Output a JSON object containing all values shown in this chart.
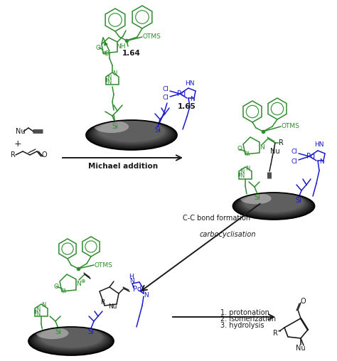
{
  "figure_width": 4.74,
  "figure_height": 5.08,
  "dpi": 100,
  "bg_color": "#ffffff",
  "green_color": "#2e8b2e",
  "blue_color": "#1a1acd",
  "black_color": "#1a1a1a",
  "arrow_label1": "Michael addition",
  "arrow_label2": "C-C bond formation",
  "arrow_label3": "carbocyclisation",
  "arrow_label4a": "1. protonation",
  "arrow_label4b": "2. isomerization",
  "arrow_label4c": "3. hydrolysis",
  "label_164": "1.64",
  "label_165": "1.65"
}
